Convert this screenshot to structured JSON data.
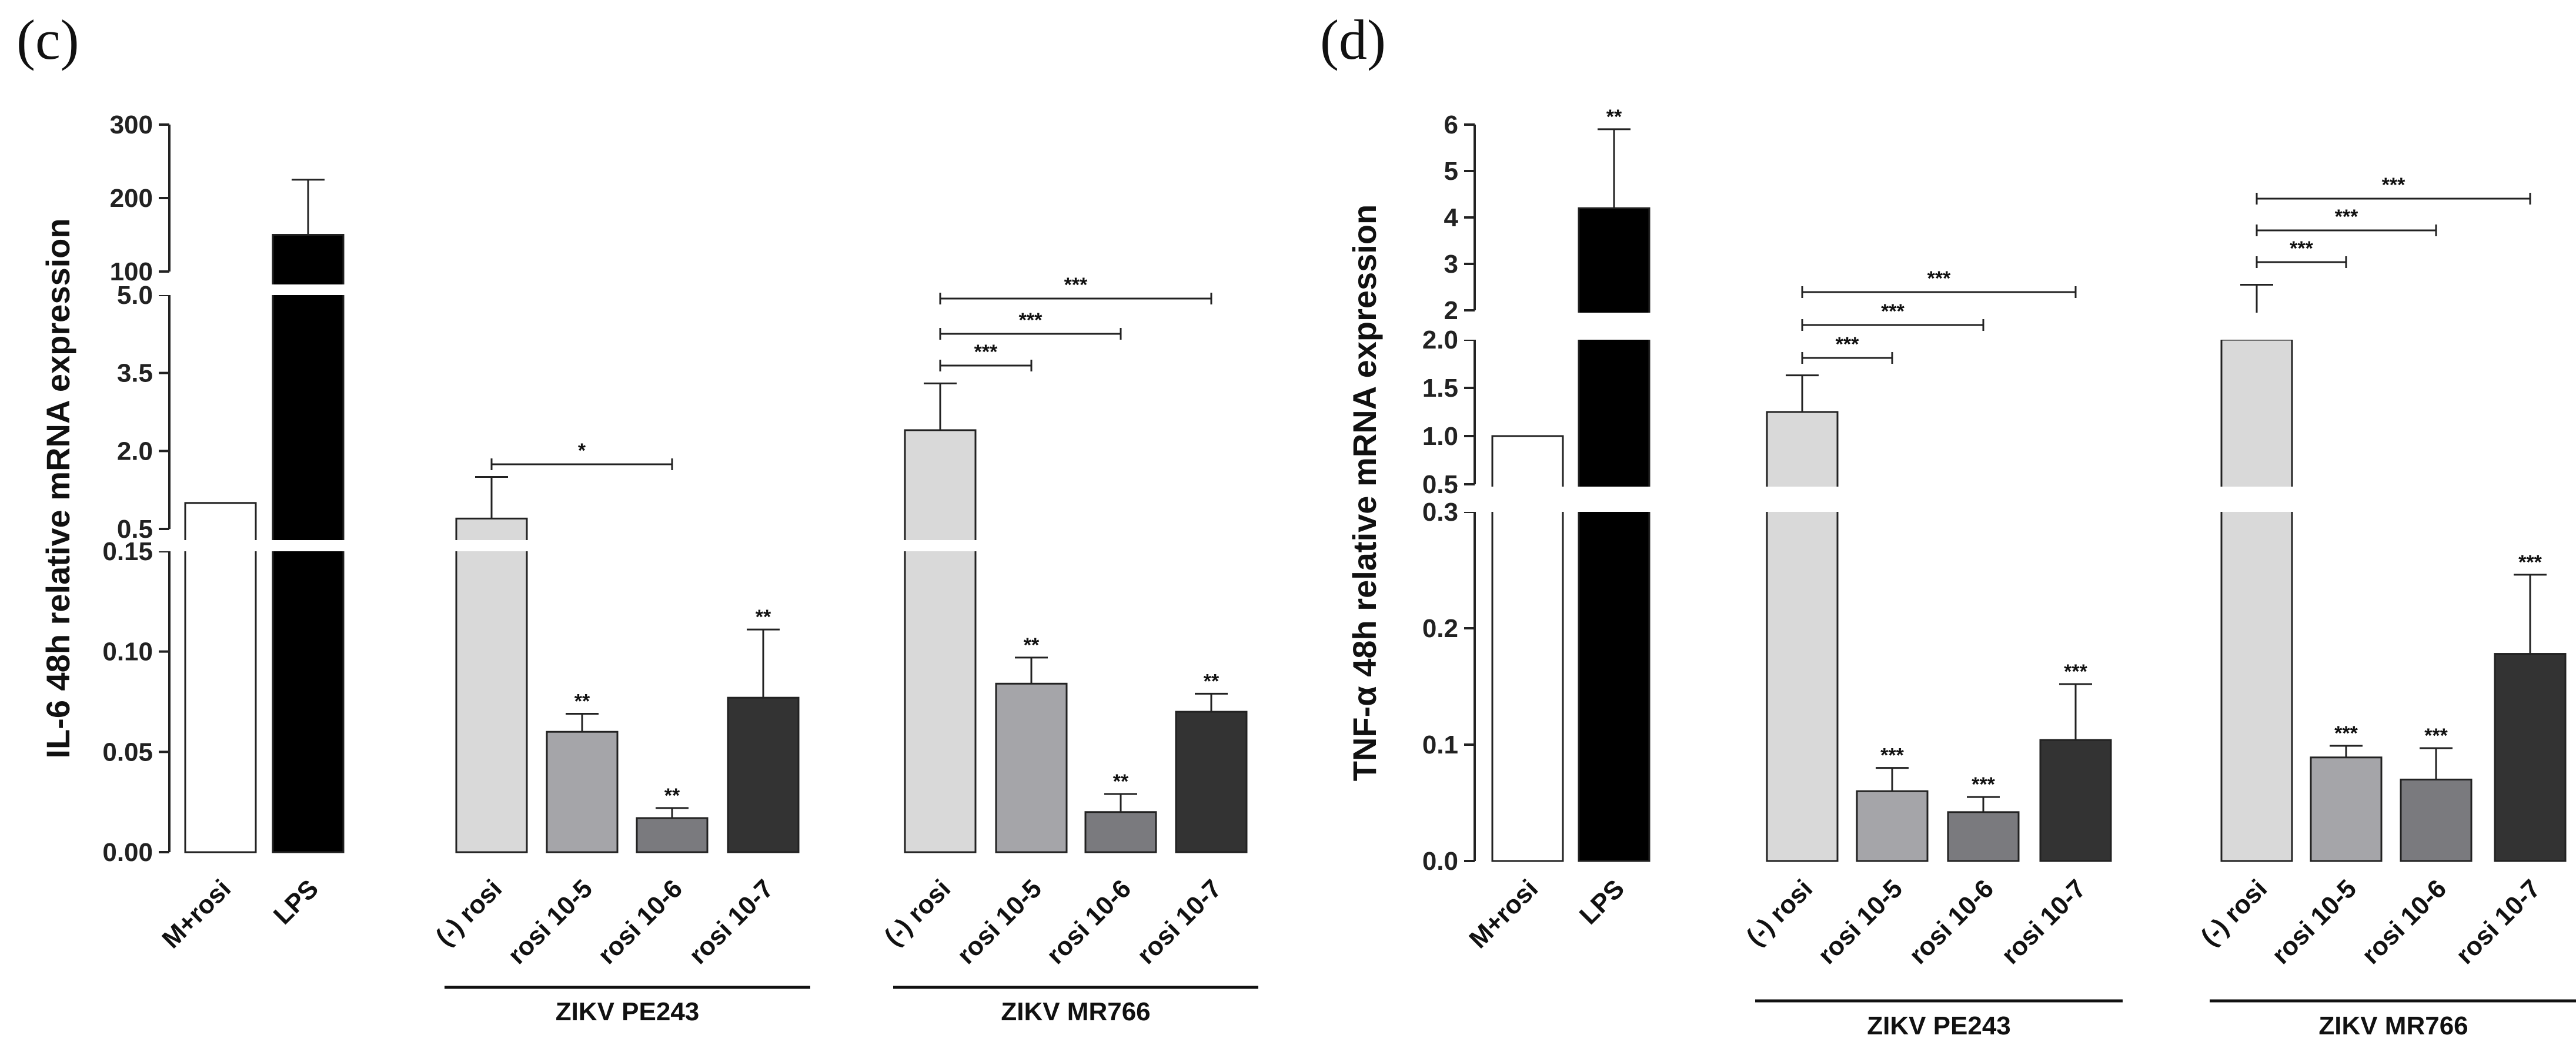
{
  "chart_data": [
    {
      "panel_label": "(c)",
      "type": "bar",
      "ylabel": "IL-6 48h relative mRNA expression",
      "categories": [
        "M+rosi",
        "LPS",
        "(-) rosi",
        "rosi 10-5",
        "rosi 10-6",
        "rosi 10-7",
        "(-) rosi",
        "rosi 10-5",
        "rosi 10-6",
        "rosi 10-7"
      ],
      "values": [
        1.0,
        150,
        0.7,
        0.06,
        0.017,
        0.077,
        2.4,
        0.084,
        0.02,
        0.07
      ],
      "errors": [
        0,
        75,
        0.8,
        0.009,
        0.005,
        0.034,
        0.9,
        0.013,
        0.009,
        0.009
      ],
      "significance": [
        "",
        "",
        "",
        "**",
        "**",
        "**",
        "",
        "**",
        "**",
        "**"
      ],
      "colors": [
        "#ffffff",
        "#000000",
        "#d9d9d9",
        "#a5a5a9",
        "#7a7a7e",
        "#333333",
        "#d9d9d9",
        "#a5a5a9",
        "#7a7a7e",
        "#333333"
      ],
      "groups": [
        {
          "label": "ZIKV PE243",
          "from": 2,
          "to": 5
        },
        {
          "label": "ZIKV MR766",
          "from": 6,
          "to": 9
        }
      ],
      "comparisons": [
        {
          "from": 2,
          "to": 4,
          "label": "*"
        },
        {
          "from": 6,
          "to": 7,
          "label": "***"
        },
        {
          "from": 6,
          "to": 8,
          "label": "***"
        },
        {
          "from": 6,
          "to": 9,
          "label": "***"
        }
      ],
      "segments": [
        {
          "range": [
            0,
            0.15
          ],
          "ticks": [
            "0.00",
            "0.05",
            "0.10",
            "0.15"
          ],
          "tickvals": [
            0,
            0.05,
            0.1,
            0.15
          ]
        },
        {
          "range": [
            0.5,
            5.0
          ],
          "ticks": [
            "0.5",
            "2.0",
            "3.5",
            "5.0"
          ],
          "tickvals": [
            0.5,
            2.0,
            3.5,
            5.0
          ]
        },
        {
          "range": [
            100,
            300
          ],
          "ticks": [
            "100",
            "200",
            "300"
          ],
          "tickvals": [
            100,
            200,
            300
          ]
        }
      ]
    },
    {
      "panel_label": "(d)",
      "type": "bar",
      "ylabel": "TNF-α 48h relative mRNA expression",
      "categories": [
        "M+rosi",
        "LPS",
        "(-) rosi",
        "rosi 10-5",
        "rosi 10-6",
        "rosi 10-7",
        "(-) rosi",
        "rosi 10-5",
        "rosi 10-6",
        "rosi 10-7"
      ],
      "values": [
        1.0,
        4.2,
        1.25,
        0.06,
        0.042,
        0.104,
        2.0,
        0.089,
        0.07,
        0.178
      ],
      "errors": [
        0,
        1.7,
        0.38,
        0.02,
        0.013,
        0.048,
        0.55,
        0.01,
        0.027,
        0.068
      ],
      "significance": [
        "",
        "**",
        "",
        "***",
        "***",
        "***",
        "",
        "***",
        "***",
        "***"
      ],
      "colors": [
        "#ffffff",
        "#000000",
        "#d9d9d9",
        "#a5a5a9",
        "#7a7a7e",
        "#333333",
        "#d9d9d9",
        "#a5a5a9",
        "#7a7a7e",
        "#333333"
      ],
      "groups": [
        {
          "label": "ZIKV PE243",
          "from": 2,
          "to": 5
        },
        {
          "label": "ZIKV MR766",
          "from": 6,
          "to": 9
        }
      ],
      "comparisons": [
        {
          "from": 2,
          "to": 3,
          "label": "***"
        },
        {
          "from": 2,
          "to": 4,
          "label": "***"
        },
        {
          "from": 2,
          "to": 5,
          "label": "***"
        },
        {
          "from": 6,
          "to": 7,
          "label": "***"
        },
        {
          "from": 6,
          "to": 8,
          "label": "***"
        },
        {
          "from": 6,
          "to": 9,
          "label": "***"
        }
      ],
      "segments": [
        {
          "range": [
            0,
            0.3
          ],
          "ticks": [
            "0.0",
            "0.1",
            "0.2",
            "0.3"
          ],
          "tickvals": [
            0,
            0.1,
            0.2,
            0.3
          ]
        },
        {
          "range": [
            0.5,
            2.0
          ],
          "ticks": [
            "0.5",
            "1.0",
            "1.5",
            "2.0"
          ],
          "tickvals": [
            0.5,
            1.0,
            1.5,
            2.0
          ]
        },
        {
          "range": [
            2,
            6
          ],
          "ticks": [
            "2",
            "3",
            "4",
            "5",
            "6"
          ],
          "tickvals": [
            2,
            3,
            4,
            5,
            6
          ]
        }
      ]
    }
  ]
}
